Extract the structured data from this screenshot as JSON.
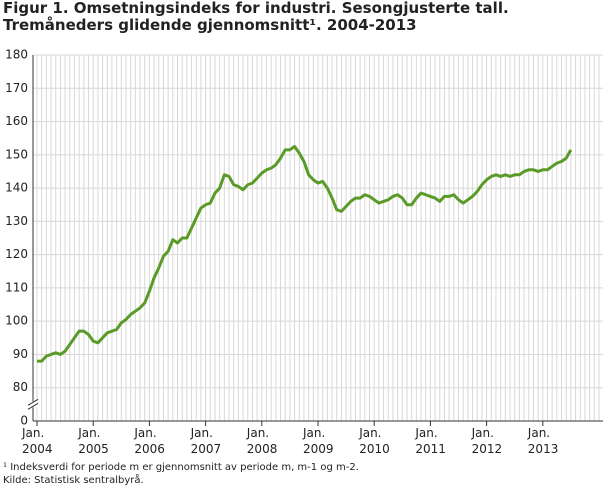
{
  "chart_data": {
    "type": "line",
    "title": "Figur 1. Omsetningsindeks for industri. Sesongjusterte tall. Tremåneders glidende gjennomsnitt¹. 2004-2013",
    "footnote": "¹ Indeksverdi for periode m er gjennomsnitt av periode m, m-1 og m-2.",
    "source": "Kilde: Statistisk sentralbyrå.",
    "categories": [
      "Jan. 2004",
      null,
      null,
      null,
      null,
      null,
      null,
      null,
      null,
      null,
      null,
      null,
      "Jan. 2005",
      null,
      null,
      null,
      null,
      null,
      null,
      null,
      null,
      null,
      null,
      null,
      "Jan. 2006",
      null,
      null,
      null,
      null,
      null,
      null,
      null,
      null,
      null,
      null,
      null,
      "Jan. 2007",
      null,
      null,
      null,
      null,
      null,
      null,
      null,
      null,
      null,
      null,
      null,
      "Jan. 2008",
      null,
      null,
      null,
      null,
      null,
      null,
      null,
      null,
      null,
      null,
      null,
      "Jan. 2009",
      null,
      null,
      null,
      null,
      null,
      null,
      null,
      null,
      null,
      null,
      null,
      "Jan. 2010",
      null,
      null,
      null,
      null,
      null,
      null,
      null,
      null,
      null,
      null,
      null,
      "Jan. 2011",
      null,
      null,
      null,
      null,
      null,
      null,
      null,
      null,
      null,
      null,
      null,
      "Jan. 2012",
      null,
      null,
      null,
      null,
      null,
      null,
      null,
      null,
      null,
      null,
      null,
      "Jan. 2013",
      null,
      null,
      null,
      null,
      null,
      null
    ],
    "values": [
      88,
      88,
      89.5,
      90,
      90.5,
      90,
      91,
      93,
      95,
      97,
      97,
      96,
      94,
      93.5,
      95,
      96.5,
      97,
      97.5,
      99.5,
      100.5,
      102,
      103,
      104,
      105.5,
      109,
      113,
      116,
      119.5,
      121,
      124.5,
      123.5,
      125,
      125,
      128,
      131,
      134,
      135,
      135.5,
      138.5,
      140,
      144,
      143.5,
      141,
      140.5,
      139.5,
      141,
      141.5,
      143,
      144.5,
      145.5,
      146,
      147,
      149,
      151.5,
      151.5,
      152.5,
      150.5,
      148,
      144,
      142.5,
      141.5,
      142,
      140,
      137,
      133.5,
      133,
      134.5,
      136,
      137,
      137,
      138,
      137.5,
      136.5,
      135.5,
      136,
      136.5,
      137.5,
      138,
      137,
      135,
      135,
      137,
      138.5,
      138,
      137.5,
      137,
      136,
      137.5,
      137.5,
      138,
      136.5,
      135.5,
      136.5,
      137.5,
      139,
      141,
      142.5,
      143.5,
      144,
      143.5,
      144,
      143.5,
      144,
      144,
      145,
      145.5,
      145.5,
      145,
      145.5,
      145.5,
      146.5,
      147.5,
      148,
      149,
      151.5
    ],
    "color": "#5a9b28",
    "ylim": [
      0,
      180
    ],
    "yticks": [
      0,
      80,
      90,
      100,
      110,
      120,
      130,
      140,
      150,
      160,
      170,
      180
    ],
    "axis_break": [
      0,
      80
    ],
    "grid": true
  }
}
